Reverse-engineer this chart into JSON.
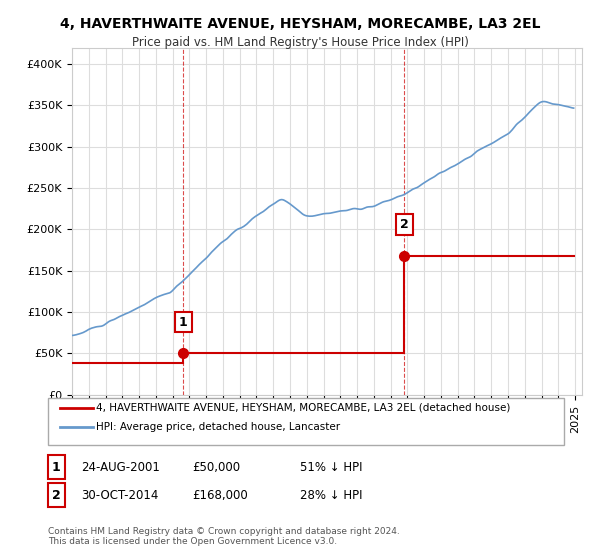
{
  "title": "4, HAVERTHWAITE AVENUE, HEYSHAM, MORECAMBE, LA3 2EL",
  "subtitle": "Price paid vs. HM Land Registry's House Price Index (HPI)",
  "sale1_date": "2001-08-24",
  "sale1_label": "24-AUG-2001",
  "sale1_price": 50000,
  "sale1_hpi_pct": "51% ↓ HPI",
  "sale2_date": "2014-10-30",
  "sale2_label": "30-OCT-2014",
  "sale2_price": 168000,
  "sale2_hpi_pct": "28% ↓ HPI",
  "legend_property": "4, HAVERTHWAITE AVENUE, HEYSHAM, MORECAMBE, LA3 2EL (detached house)",
  "legend_hpi": "HPI: Average price, detached house, Lancaster",
  "footer": "Contains HM Land Registry data © Crown copyright and database right 2024.\nThis data is licensed under the Open Government Licence v3.0.",
  "hpi_color": "#6699cc",
  "property_color": "#cc0000",
  "marker_color": "#cc0000",
  "ylim": [
    0,
    420000
  ],
  "yticks": [
    0,
    50000,
    100000,
    150000,
    200000,
    250000,
    300000,
    350000,
    400000
  ],
  "background_color": "#ffffff",
  "grid_color": "#dddddd"
}
